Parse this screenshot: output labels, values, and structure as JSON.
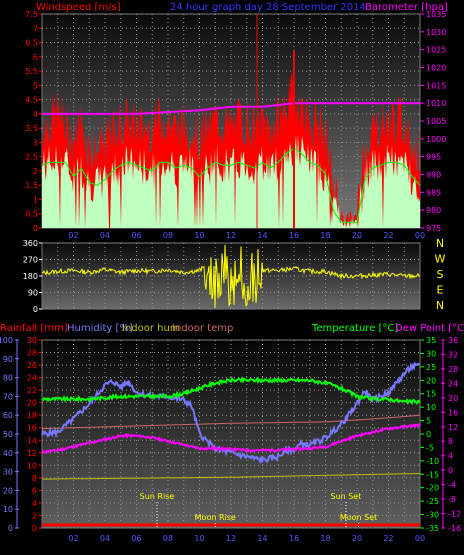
{
  "top_chart": {
    "left_axis_title": "Windspeed [m/s]",
    "center_title": "24 hour graph day  28 September 2014",
    "right_axis_title": "Barometer [hpa]",
    "left_ticks": [
      "0",
      "0.5",
      "1",
      "1.5",
      "2",
      "2.5",
      "3",
      "3.5",
      "4",
      "4.5",
      "5",
      "5.5",
      "6",
      "6.5",
      "7",
      "7.5"
    ],
    "right_ticks": [
      "975",
      "980",
      "985",
      "990",
      "995",
      "1000",
      "1005",
      "1010",
      "1015",
      "1020",
      "1025",
      "1030",
      "1035"
    ],
    "hour_ticks": [
      "02",
      "04",
      "06",
      "08",
      "10",
      "12",
      "14",
      "16",
      "18",
      "20",
      "22",
      "00"
    ],
    "colors": {
      "gust": "#ff0000",
      "average": "#bfffbf",
      "average_line": "#00ff00",
      "barometer": "#ff00ff",
      "frame": "#777777",
      "vline": "#ff0000"
    }
  },
  "direction_chart": {
    "left_ticks": [
      "0",
      "90",
      "180",
      "270",
      "360"
    ],
    "compass": [
      "N",
      "W",
      "S",
      "E",
      "N"
    ],
    "colors": {
      "direction": "#ffff00",
      "compass": "#ffff00"
    }
  },
  "bottom_chart": {
    "legend": {
      "rainfall": "Rainfall [mm]",
      "humidity": "Humidity [%]",
      "indoor_hum": "Indoor hum",
      "indoor_temp": "Indoor temp",
      "temperature": "Temperature [°C]",
      "dew_point": "Dew Point [°C]"
    },
    "humidity_ticks": [
      "0",
      "10",
      "20",
      "30",
      "40",
      "50",
      "60",
      "70",
      "80",
      "90",
      "100"
    ],
    "rain_ticks": [
      "0",
      "2",
      "4",
      "6",
      "8",
      "10",
      "12",
      "14",
      "16",
      "18",
      "20",
      "22",
      "24",
      "26",
      "28",
      "30"
    ],
    "temp_ticks": [
      "-35",
      "-30",
      "-25",
      "-20",
      "-15",
      "-10",
      "-5",
      "0",
      "5",
      "10",
      "15",
      "20",
      "25",
      "30",
      "35"
    ],
    "dew_ticks": [
      "-16",
      "-12",
      "-8",
      "-4",
      "0",
      "4",
      "8",
      "12",
      "16",
      "20",
      "24",
      "28",
      "32",
      "36"
    ],
    "hour_ticks": [
      "02",
      "04",
      "06",
      "08",
      "10",
      "12",
      "14",
      "16",
      "18",
      "20",
      "22",
      "00"
    ],
    "events": [
      {
        "label": "Sun Rise",
        "hour": 7.3
      },
      {
        "label": "Moon Rise",
        "hour": 11.0
      },
      {
        "label": "Sun Set",
        "hour": 19.3
      },
      {
        "label": "Moon Set",
        "hour": 20.1
      }
    ],
    "colors": {
      "rain": "#ff0000",
      "humidity": "#7777ff",
      "indoor_hum": "#c0c000",
      "indoor_temp": "#cc6666",
      "temperature": "#00ff00",
      "dew_point": "#ff00ff"
    }
  },
  "chart_data": [
    {
      "type": "line",
      "x_unit": "hour",
      "xlim": [
        0,
        24
      ],
      "ylim": [
        0,
        7.5
      ],
      "ylim_right": [
        975,
        1035
      ],
      "series": [
        {
          "name": "Gust",
          "axis": "left",
          "x": [
            0,
            0.5,
            1,
            1.5,
            2,
            2.5,
            3,
            3.5,
            4,
            4.5,
            5,
            5.5,
            6,
            6.5,
            7,
            7.5,
            8,
            8.5,
            9,
            9.5,
            10,
            10.5,
            11,
            11.5,
            12,
            12.5,
            13,
            13.5,
            14,
            14.5,
            15,
            15.5,
            16,
            16.5,
            17,
            17.5,
            18,
            18.5,
            19,
            19.5,
            20,
            20.5,
            21,
            21.5,
            22,
            22.5,
            23,
            23.5,
            24
          ],
          "values": [
            3.3,
            3.6,
            3.9,
            3.4,
            2.9,
            3.6,
            2.6,
            2.5,
            2.8,
            3.2,
            3.5,
            3.6,
            3.4,
            3.3,
            3.4,
            3.7,
            3.6,
            3.3,
            3.4,
            3.3,
            2.9,
            3.3,
            3.6,
            3.5,
            3.4,
            3.6,
            3.5,
            3.3,
            3.6,
            3.3,
            3.6,
            4.2,
            4.5,
            4.1,
            3.5,
            3.5,
            3.0,
            1.2,
            0.4,
            0.3,
            0.3,
            2.7,
            3.3,
            3.5,
            3.5,
            3.7,
            3.5,
            2.8,
            2.4
          ]
        },
        {
          "name": "Average",
          "axis": "left",
          "x": [
            0,
            0.5,
            1,
            1.5,
            2,
            2.5,
            3,
            3.5,
            4,
            4.5,
            5,
            5.5,
            6,
            6.5,
            7,
            7.5,
            8,
            8.5,
            9,
            9.5,
            10,
            10.5,
            11,
            11.5,
            12,
            12.5,
            13,
            13.5,
            14,
            14.5,
            15,
            15.5,
            16,
            16.5,
            17,
            17.5,
            18,
            18.5,
            19,
            19.5,
            20,
            20.5,
            21,
            21.5,
            22,
            22.5,
            23,
            23.5,
            24
          ],
          "values": [
            2.2,
            2.3,
            2.3,
            2.3,
            1.8,
            2.1,
            1.6,
            1.5,
            1.7,
            2.0,
            2.2,
            2.3,
            2.2,
            2.1,
            2.0,
            2.3,
            2.3,
            2.1,
            2.2,
            2.1,
            1.8,
            2.1,
            2.3,
            2.2,
            2.2,
            2.3,
            2.2,
            2.1,
            2.3,
            2.1,
            2.3,
            2.6,
            2.8,
            2.6,
            2.3,
            2.2,
            1.9,
            0.6,
            0.2,
            0.2,
            0.2,
            1.7,
            2.1,
            2.2,
            2.3,
            2.3,
            2.2,
            1.8,
            1.5
          ]
        },
        {
          "name": "Barometer",
          "axis": "right",
          "x": [
            0,
            2,
            4,
            6,
            8,
            10,
            12,
            14,
            16,
            18,
            20,
            22,
            24
          ],
          "values": [
            1007,
            1007,
            1007,
            1007,
            1007.5,
            1008,
            1009,
            1009,
            1010,
            1010,
            1010,
            1010,
            1010
          ]
        }
      ]
    },
    {
      "type": "line",
      "x_unit": "hour",
      "xlim": [
        0,
        24
      ],
      "ylim": [
        0,
        360
      ],
      "series": [
        {
          "name": "Direction",
          "x": [
            0,
            1,
            2,
            3,
            4,
            5,
            6,
            7,
            8,
            9,
            10,
            10.5,
            11,
            11.5,
            12,
            12.5,
            13,
            13.5,
            14,
            15,
            16,
            17,
            18,
            19,
            20,
            21,
            22,
            23,
            24
          ],
          "values": [
            195,
            205,
            210,
            200,
            215,
            200,
            210,
            205,
            215,
            200,
            210,
            240,
            130,
            240,
            120,
            230,
            140,
            220,
            210,
            210,
            220,
            205,
            205,
            180,
            180,
            185,
            190,
            180,
            180
          ]
        }
      ]
    },
    {
      "type": "line",
      "x_unit": "hour",
      "xlim": [
        0,
        24
      ],
      "ylim": [
        0,
        100
      ],
      "series": [
        {
          "name": "Humidity",
          "axis": "humidity",
          "x": [
            0,
            1,
            2,
            3,
            4,
            4.5,
            5,
            5.5,
            6,
            7,
            8,
            9,
            9.5,
            10,
            11,
            12,
            13,
            14,
            15,
            15.5,
            16,
            16.5,
            17,
            18,
            19,
            20,
            20.5,
            21,
            22,
            23,
            23.5,
            24
          ],
          "values": [
            50,
            51,
            58,
            66,
            76,
            78,
            75,
            78,
            72,
            70,
            70,
            68,
            65,
            50,
            42,
            40,
            38,
            36,
            38,
            41,
            42,
            45,
            44,
            48,
            55,
            66,
            73,
            68,
            72,
            82,
            86,
            86
          ]
        },
        {
          "name": "Indoor hum",
          "axis": "humidity",
          "x": [
            0,
            6,
            12,
            18,
            24
          ],
          "values": [
            26,
            26.5,
            27,
            28,
            29
          ]
        },
        {
          "name": "Indoor temp",
          "axis": "temperature",
          "x": [
            0,
            6,
            12,
            18,
            22,
            24
          ],
          "values": [
            2,
            3,
            4,
            4.5,
            6,
            7
          ]
        },
        {
          "name": "Temperature",
          "axis": "temperature",
          "x": [
            0,
            1,
            2,
            3,
            4,
            5,
            6,
            7,
            8,
            9,
            10,
            11,
            12,
            13,
            14,
            15,
            16,
            17,
            18,
            19,
            20,
            21,
            22,
            23,
            24
          ],
          "values": [
            13,
            13,
            13,
            13,
            13.5,
            14,
            14,
            14,
            14,
            15,
            17,
            19,
            20,
            20,
            20,
            20,
            20,
            20,
            19,
            17,
            14,
            13,
            13,
            12,
            12
          ]
        },
        {
          "name": "Dew Point",
          "axis": "dew",
          "x": [
            0,
            1,
            2,
            3,
            4,
            5,
            6,
            7,
            8,
            9,
            10,
            11,
            12,
            13,
            14,
            15,
            16,
            17,
            18,
            19,
            20,
            21,
            22,
            23,
            24
          ],
          "values": [
            5,
            5.5,
            6.5,
            7.5,
            8.5,
            9.5,
            9.5,
            9.0,
            8.0,
            7.0,
            6.0,
            6.0,
            5.8,
            5.5,
            5.5,
            5.6,
            5.8,
            6.0,
            6.5,
            8.0,
            9.5,
            10.5,
            11.5,
            12.0,
            12.5
          ]
        },
        {
          "name": "Rainfall",
          "axis": "rain",
          "x": [
            0,
            24
          ],
          "values": [
            0,
            0
          ]
        }
      ]
    }
  ]
}
